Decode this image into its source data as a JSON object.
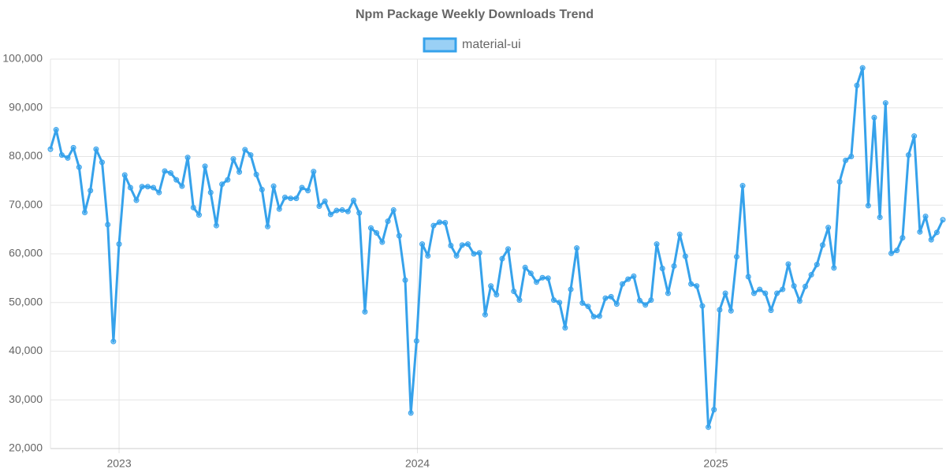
{
  "chart_data": {
    "type": "line",
    "title": "Npm Package Weekly Downloads Trend",
    "x": [
      2022.77,
      2022.789,
      2022.808,
      2022.828,
      2022.847,
      2022.866,
      2022.885,
      2022.904,
      2022.923,
      2022.943,
      2022.962,
      2022.981,
      2023.0,
      2023.019,
      2023.038,
      2023.058,
      2023.077,
      2023.096,
      2023.115,
      2023.134,
      2023.153,
      2023.173,
      2023.192,
      2023.211,
      2023.23,
      2023.249,
      2023.268,
      2023.288,
      2023.307,
      2023.326,
      2023.345,
      2023.364,
      2023.383,
      2023.403,
      2023.422,
      2023.441,
      2023.46,
      2023.479,
      2023.498,
      2023.518,
      2023.537,
      2023.556,
      2023.575,
      2023.594,
      2023.613,
      2023.633,
      2023.652,
      2023.671,
      2023.69,
      2023.709,
      2023.729,
      2023.748,
      2023.767,
      2023.786,
      2023.805,
      2023.824,
      2023.844,
      2023.863,
      2023.882,
      2023.901,
      2023.92,
      2023.939,
      2023.959,
      2023.978,
      2023.997,
      2024.016,
      2024.035,
      2024.054,
      2024.074,
      2024.093,
      2024.112,
      2024.131,
      2024.15,
      2024.169,
      2024.189,
      2024.208,
      2024.227,
      2024.246,
      2024.265,
      2024.284,
      2024.304,
      2024.323,
      2024.342,
      2024.361,
      2024.38,
      2024.399,
      2024.419,
      2024.438,
      2024.457,
      2024.476,
      2024.495,
      2024.514,
      2024.534,
      2024.553,
      2024.572,
      2024.591,
      2024.61,
      2024.63,
      2024.649,
      2024.668,
      2024.687,
      2024.706,
      2024.725,
      2024.745,
      2024.764,
      2024.783,
      2024.802,
      2024.821,
      2024.84,
      2024.86,
      2024.879,
      2024.898,
      2024.917,
      2024.936,
      2024.955,
      2024.975,
      2024.994,
      2025.013,
      2025.032,
      2025.051,
      2025.07,
      2025.09,
      2025.109,
      2025.128,
      2025.147,
      2025.166,
      2025.185,
      2025.205,
      2025.224,
      2025.243,
      2025.262,
      2025.281,
      2025.3,
      2025.32,
      2025.339,
      2025.358,
      2025.377,
      2025.396,
      2025.415,
      2025.435,
      2025.454,
      2025.473,
      2025.492,
      2025.511,
      2025.531,
      2025.55,
      2025.569,
      2025.588,
      2025.607,
      2025.626,
      2025.646,
      2025.665,
      2025.684,
      2025.703,
      2025.722,
      2025.741,
      2025.761
    ],
    "series": [
      {
        "name": "material-ui",
        "color": "#36a2eb",
        "fill": "rgba(54,162,235,0.5)",
        "values": [
          81500,
          85500,
          80300,
          79700,
          81800,
          77800,
          68500,
          73000,
          81500,
          78800,
          66000,
          42000,
          62000,
          76200,
          73600,
          71000,
          73800,
          73800,
          73600,
          72600,
          77000,
          76600,
          75200,
          73900,
          79800,
          69500,
          68000,
          78000,
          72600,
          65800,
          74300,
          75200,
          79500,
          76800,
          81400,
          80300,
          76300,
          73200,
          65600,
          73900,
          69200,
          71600,
          71400,
          71400,
          73600,
          73000,
          76900,
          69800,
          70800,
          68100,
          68900,
          69000,
          68700,
          71000,
          68400,
          48100,
          65300,
          64300,
          62400,
          66700,
          69000,
          63700,
          54600,
          27300,
          42100,
          62000,
          59600,
          65800,
          66500,
          66400,
          61700,
          59600,
          61800,
          62000,
          60000,
          60200,
          47500,
          53400,
          51600,
          59000,
          61000,
          52300,
          50500,
          57200,
          56000,
          54200,
          55100,
          55000,
          50500,
          50000,
          44800,
          52700,
          61200,
          49900,
          49200,
          47100,
          47200,
          50900,
          51200,
          49700,
          53800,
          54800,
          55400,
          50400,
          49500,
          50500,
          62000,
          57000,
          51900,
          57500,
          64000,
          59500,
          53800,
          53400,
          49300,
          24400,
          28000,
          48500,
          51900,
          48300,
          59400,
          74000,
          55300,
          51900,
          52700,
          51900,
          48400,
          51900,
          52700,
          57900,
          53400,
          50300,
          53300,
          55700,
          57800,
          61800,
          65400,
          57100,
          74800,
          79200,
          80000,
          94600,
          98200,
          69900,
          88000,
          67500,
          91000,
          60100,
          60700,
          63300,
          80300,
          84200,
          64500,
          67700,
          62900,
          64400,
          67000
        ]
      }
    ],
    "xlim": [
      2022.77,
      2025.761
    ],
    "xticks": [
      2023,
      2024,
      2025
    ],
    "ylim": [
      20000,
      100000
    ],
    "yticks": [
      {
        "value": 20000,
        "label": "20,000"
      },
      {
        "value": 30000,
        "label": "30,000"
      },
      {
        "value": 40000,
        "label": "40,000"
      },
      {
        "value": 50000,
        "label": "50,000"
      },
      {
        "value": 60000,
        "label": "60,000"
      },
      {
        "value": 70000,
        "label": "70,000"
      },
      {
        "value": 80000,
        "label": "80,000"
      },
      {
        "value": 90000,
        "label": "90,000"
      },
      {
        "value": 100000,
        "label": "100,000"
      }
    ],
    "grid": true,
    "legend": "top"
  }
}
